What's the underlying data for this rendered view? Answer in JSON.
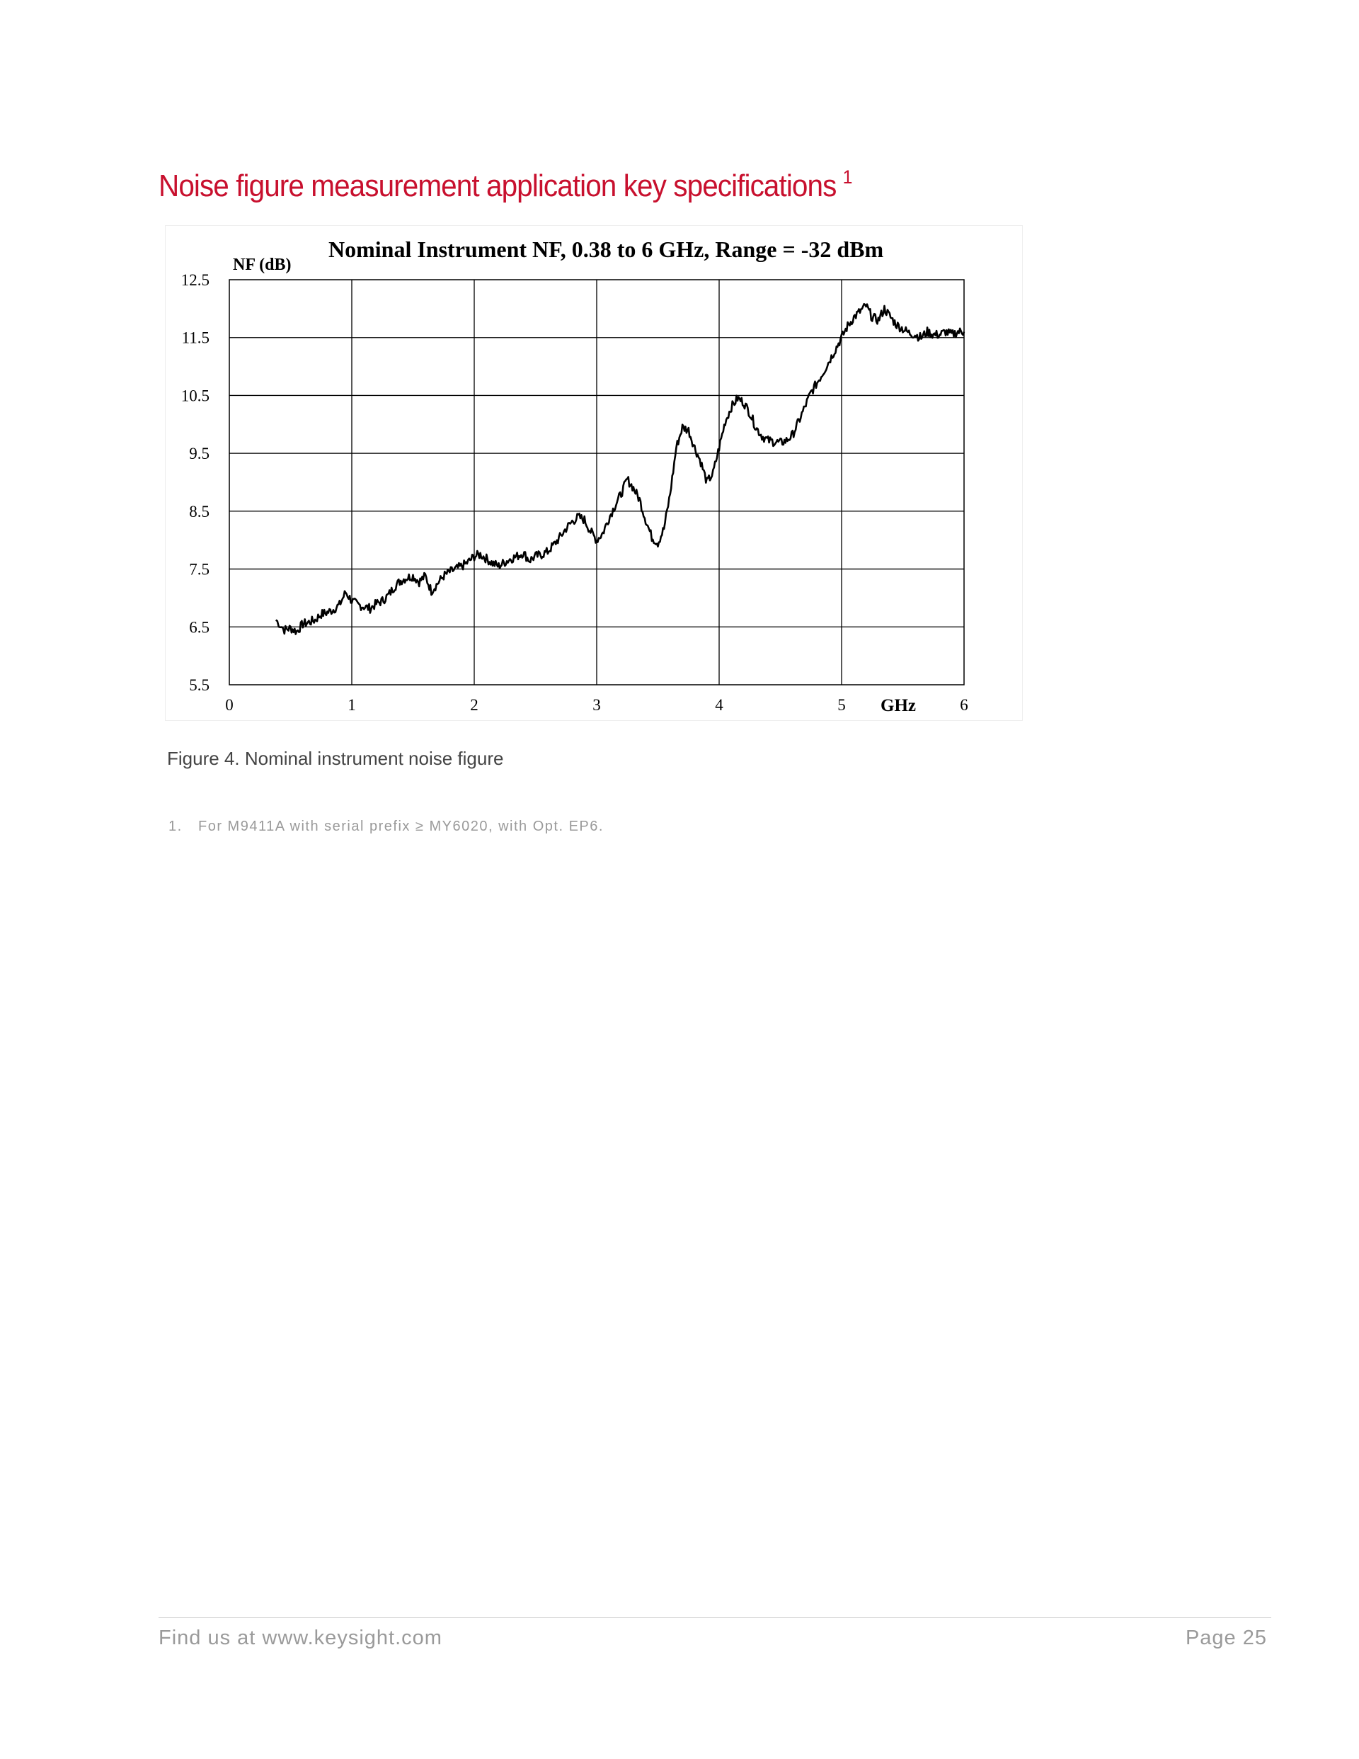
{
  "heading": {
    "text": "Noise figure measurement application key specifications",
    "footnote_ref": "1",
    "color": "#c8102e"
  },
  "figure": {
    "caption": "Figure 4. Nominal instrument noise figure"
  },
  "footnotes": [
    {
      "number": "1.",
      "text": "For M9411A with serial prefix ≥ MY6020, with Opt. EP6."
    }
  ],
  "footer": {
    "left": "Find us at www.keysight.com",
    "right": "Page 25"
  },
  "chart_data": {
    "type": "line",
    "title": "Nominal Instrument NF, 0.38 to 6 GHz, Range = -32 dBm",
    "ylabel": "NF (dB)",
    "xlabel": "GHz",
    "xlim": [
      0,
      6
    ],
    "ylim": [
      5.5,
      12.5
    ],
    "x_ticks": [
      "0",
      "1",
      "2",
      "3",
      "4",
      "5",
      "6"
    ],
    "y_ticks": [
      "12.5",
      "11.5",
      "10.5",
      "9.5",
      "8.5",
      "7.5",
      "6.5",
      "5.5"
    ],
    "grid": true,
    "line_color": "#000000",
    "series": [
      {
        "x": [
          0.38,
          0.45,
          0.5,
          0.55,
          0.6,
          0.65,
          0.7,
          0.75,
          0.8,
          0.85,
          0.9,
          0.95,
          1.0,
          1.05,
          1.1,
          1.15,
          1.2,
          1.25,
          1.3,
          1.35,
          1.4,
          1.45,
          1.5,
          1.55,
          1.6,
          1.65,
          1.7,
          1.75,
          1.8,
          1.85,
          1.9,
          1.95,
          2.0,
          2.05,
          2.1,
          2.15,
          2.2,
          2.25,
          2.3,
          2.35,
          2.4,
          2.45,
          2.5,
          2.55,
          2.6,
          2.65,
          2.7,
          2.75,
          2.8,
          2.85,
          2.9,
          2.95,
          3.0,
          3.05,
          3.1,
          3.15,
          3.2,
          3.25,
          3.3,
          3.35,
          3.4,
          3.45,
          3.5,
          3.55,
          3.6,
          3.65,
          3.7,
          3.75,
          3.8,
          3.85,
          3.9,
          3.95,
          4.0,
          4.05,
          4.1,
          4.15,
          4.2,
          4.25,
          4.3,
          4.35,
          4.4,
          4.45,
          4.5,
          4.55,
          4.6,
          4.65,
          4.7,
          4.75,
          4.8,
          4.85,
          4.9,
          4.95,
          5.0,
          5.05,
          5.1,
          5.15,
          5.2,
          5.25,
          5.3,
          5.35,
          5.4,
          5.45,
          5.5,
          5.55,
          5.6,
          5.65,
          5.7,
          5.75,
          5.8,
          5.85,
          5.9,
          5.95,
          6.0
        ],
        "values": [
          6.62,
          6.45,
          6.48,
          6.42,
          6.55,
          6.58,
          6.62,
          6.72,
          6.75,
          6.8,
          6.88,
          7.1,
          6.95,
          6.88,
          6.85,
          6.82,
          6.9,
          6.95,
          7.05,
          7.2,
          7.3,
          7.35,
          7.38,
          7.28,
          7.38,
          7.12,
          7.25,
          7.38,
          7.45,
          7.5,
          7.55,
          7.62,
          7.72,
          7.75,
          7.68,
          7.6,
          7.55,
          7.62,
          7.68,
          7.72,
          7.78,
          7.65,
          7.72,
          7.75,
          7.8,
          7.92,
          8.05,
          8.2,
          8.32,
          8.4,
          8.35,
          8.15,
          8.0,
          8.12,
          8.38,
          8.6,
          8.8,
          9.05,
          8.9,
          8.7,
          8.35,
          8.05,
          7.95,
          8.2,
          8.8,
          9.6,
          9.95,
          9.9,
          9.6,
          9.35,
          9.0,
          9.15,
          9.6,
          10.05,
          10.3,
          10.45,
          10.38,
          10.2,
          9.95,
          9.8,
          9.72,
          9.7,
          9.68,
          9.72,
          9.82,
          10.05,
          10.3,
          10.55,
          10.72,
          10.9,
          11.1,
          11.3,
          11.5,
          11.7,
          11.85,
          11.95,
          12.05,
          11.85,
          11.8,
          12.0,
          11.85,
          11.72,
          11.65,
          11.58,
          11.55,
          11.5,
          11.6,
          11.55,
          11.55,
          11.6,
          11.55,
          11.6,
          11.6
        ]
      }
    ]
  }
}
